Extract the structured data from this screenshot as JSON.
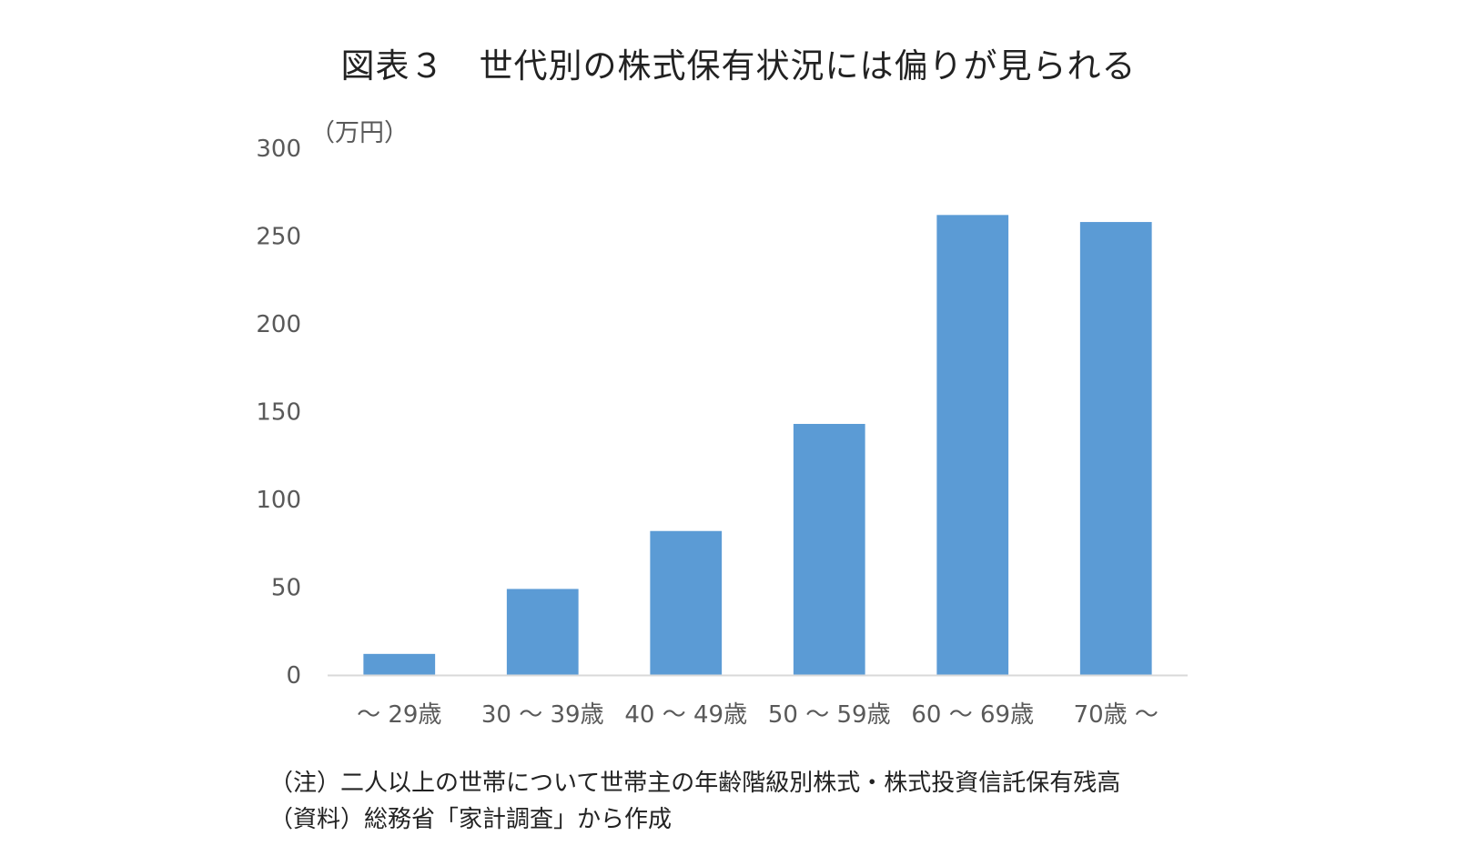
{
  "chart_data": {
    "type": "bar",
    "title": "図表３　世代別の株式保有状況には偏りが見られる",
    "unit_label": "（万円）",
    "categories": [
      "～ 29歳",
      "30 ～ 39歳",
      "40 ～ 49歳",
      "50 ～ 59歳",
      "60 ～ 69歳",
      "70歳 ～"
    ],
    "values": [
      12,
      49,
      82,
      143,
      262,
      258
    ],
    "ylim": [
      0,
      300
    ],
    "yticks": [
      "0",
      "50",
      "100",
      "150",
      "200",
      "250",
      "300"
    ],
    "grid": false,
    "legend": "none",
    "bar_color": "#5b9bd5",
    "axis_color": "#d9d9d9",
    "tick_label_color": "#595959"
  },
  "notes": {
    "note": "（注）二人以上の世帯について世帯主の年齢階級別株式・株式投資信託保有残高",
    "source": "（資料）総務省「家計調査」から作成"
  }
}
